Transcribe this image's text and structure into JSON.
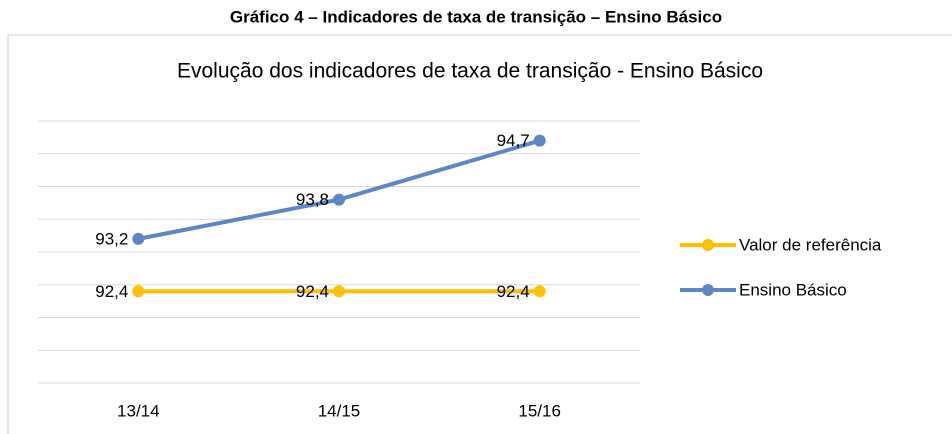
{
  "caption": "Gráfico 4 – Indicadores de taxa de transição – Ensino Básico",
  "chart_data": {
    "type": "line",
    "title": "Evolução dos indicadores de taxa de transição -  Ensino Básico",
    "categories": [
      "13/14",
      "14/15",
      "15/16"
    ],
    "series": [
      {
        "name": "Valor de referência",
        "color": "#FFC000",
        "values": [
          92.4,
          92.4,
          92.4
        ],
        "value_labels": [
          "92,4",
          "92,4",
          "92,4"
        ]
      },
      {
        "name": "Ensino Básico",
        "color": "#5B87C6",
        "values": [
          93.2,
          93.8,
          94.7
        ],
        "value_labels": [
          "93,2",
          "93,8",
          "94,7"
        ]
      }
    ],
    "ylim": [
      91,
      95
    ],
    "yticks": [
      91,
      91.5,
      92,
      92.5,
      93,
      93.5,
      94,
      94.5,
      95
    ],
    "grid": true,
    "legend": "right"
  }
}
